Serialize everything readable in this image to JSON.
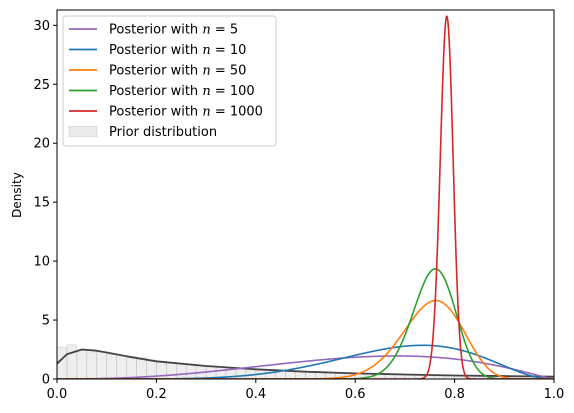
{
  "chart_data": {
    "type": "line",
    "title": "",
    "xlabel": "",
    "ylabel": "Density",
    "xlim": [
      0.0,
      1.0
    ],
    "ylim": [
      0,
      31.3
    ],
    "x_ticks": [
      0.0,
      0.2,
      0.4,
      0.6,
      0.8,
      1.0
    ],
    "x_tick_labels": [
      "0.0",
      "0.2",
      "0.4",
      "0.6",
      "0.8",
      "1.0"
    ],
    "y_ticks": [
      0,
      5,
      10,
      15,
      20,
      25,
      30
    ],
    "y_tick_labels": [
      "0",
      "5",
      "10",
      "15",
      "20",
      "25",
      "30"
    ],
    "grid": false,
    "legend_position": "upper-left",
    "series": [
      {
        "name": "Posterior with n = 5",
        "name_prefix": "Posterior with ",
        "name_var": "n",
        "name_eq": " = ",
        "name_num": "5",
        "color": "#9467bd",
        "kind": "line",
        "dist": "beta",
        "a": 3.6,
        "b": 2.2
      },
      {
        "name": "Posterior with n = 10",
        "name_prefix": "Posterior with ",
        "name_var": "n",
        "name_eq": " = ",
        "name_num": "10",
        "color": "#1f77b4",
        "kind": "line",
        "dist": "beta",
        "a": 7.4,
        "b": 3.3
      },
      {
        "name": "Posterior with n = 50",
        "name_prefix": "Posterior with ",
        "name_var": "n",
        "name_eq": " = ",
        "name_num": "50",
        "color": "#ff7f0e",
        "kind": "line",
        "dist": "beta",
        "a": 38.5,
        "b": 12.7
      },
      {
        "name": "Posterior with n = 100",
        "name_prefix": "Posterior with ",
        "name_var": "n",
        "name_eq": " = ",
        "name_num": "100",
        "color": "#2ca02c",
        "kind": "line",
        "dist": "beta",
        "a": 76,
        "b": 24.5
      },
      {
        "name": "Posterior with n = 1000",
        "name_prefix": "Posterior with ",
        "name_var": "n",
        "name_eq": " = ",
        "name_num": "1000",
        "color": "#d62728",
        "kind": "line",
        "dist": "beta",
        "a": 790,
        "b": 218
      },
      {
        "name": "Prior distribution",
        "color": "#aaaaaa",
        "kind": "hist"
      }
    ],
    "prior_curve": {
      "color": "#444444",
      "x": [
        0.0,
        0.02,
        0.05,
        0.08,
        0.1,
        0.15,
        0.2,
        0.3,
        0.4,
        0.5,
        0.6,
        0.7,
        0.8,
        0.9,
        1.0
      ],
      "y": [
        1.3,
        2.1,
        2.5,
        2.4,
        2.25,
        1.85,
        1.5,
        1.1,
        0.82,
        0.62,
        0.48,
        0.38,
        0.3,
        0.25,
        0.2
      ]
    },
    "prior_histogram": {
      "color": "#aaaaaa",
      "bin_edges": [
        0.0,
        0.02,
        0.04,
        0.06,
        0.08,
        0.1,
        0.12,
        0.14,
        0.16,
        0.18,
        0.2,
        0.22,
        0.24,
        0.26,
        0.28,
        0.3,
        0.32,
        0.34,
        0.36,
        0.38,
        0.4,
        0.42,
        0.44,
        0.46,
        0.48,
        0.5,
        0.52,
        0.54,
        0.56,
        0.58,
        0.6,
        0.62,
        0.64,
        0.66,
        0.68,
        0.7,
        0.72,
        0.74,
        0.76,
        0.78,
        0.8,
        0.82,
        0.84,
        0.86,
        0.88,
        0.9,
        0.92,
        0.94,
        0.96,
        0.98,
        1.0
      ],
      "values": [
        2.7,
        2.9,
        2.4,
        2.3,
        2.3,
        2.1,
        2.0,
        1.9,
        1.8,
        1.6,
        1.5,
        1.4,
        1.3,
        1.25,
        1.15,
        1.1,
        1.0,
        0.95,
        0.9,
        0.85,
        0.82,
        0.78,
        0.72,
        0.68,
        0.65,
        0.62,
        0.58,
        0.55,
        0.52,
        0.5,
        0.48,
        0.46,
        0.44,
        0.42,
        0.4,
        0.38,
        0.36,
        0.35,
        0.34,
        0.33,
        0.31,
        0.3,
        0.29,
        0.28,
        0.27,
        0.26,
        0.25,
        0.24,
        0.23,
        0.22
      ]
    }
  }
}
